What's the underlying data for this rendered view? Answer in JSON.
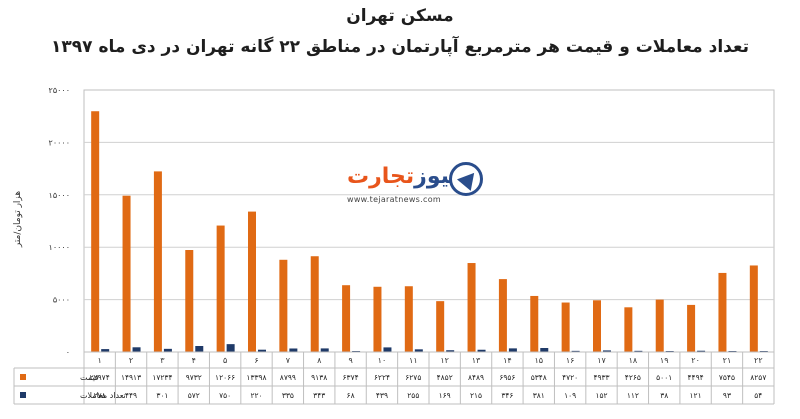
{
  "chart_data": {
    "type": "bar",
    "title": "مسکن تهران",
    "subtitle": "تعداد معاملات و قیمت هر مترمربع آپارتمان در مناطق ۲۲ گانه تهران در دی ماه ۱۳۹۷",
    "ylabel": "هزار تومان/متر",
    "ylim": [
      0,
      25000
    ],
    "yticks": [
      "۲۵۰۰۰",
      "۲۰۰۰۰",
      "۱۵۰۰۰",
      "۱۰۰۰۰",
      "۵۰۰۰",
      "۰"
    ],
    "categories": [
      "۱",
      "۲",
      "۳",
      "۴",
      "۵",
      "۶",
      "۷",
      "۸",
      "۹",
      "۱۰",
      "۱۱",
      "۱۲",
      "۱۳",
      "۱۴",
      "۱۵",
      "۱۶",
      "۱۷",
      "۱۸",
      "۱۹",
      "۲۰",
      "۲۱",
      "۲۲"
    ],
    "series": [
      {
        "name": "قیمت",
        "color": "#e06a14",
        "values": [
          22974,
          14913,
          17234,
          9732,
          12066,
          13398,
          8799,
          9138,
          6374,
          6224,
          6275,
          4852,
          8489,
          6956,
          5348,
          4720,
          4933,
          4265,
          5001,
          4494,
          7545,
          8257
        ],
        "labels": [
          "۲۲۹۷۴",
          "۱۴۹۱۳",
          "۱۷۲۳۴",
          "۹۷۳۲",
          "۱۲۰۶۶",
          "۱۳۳۹۸",
          "۸۷۹۹",
          "۹۱۳۸",
          "۶۳۷۴",
          "۶۲۲۴",
          "۶۲۷۵",
          "۴۸۵۲",
          "۸۴۸۹",
          "۶۹۵۶",
          "۵۳۴۸",
          "۴۷۲۰",
          "۴۹۳۳",
          "۴۲۶۵",
          "۵۰۰۱",
          "۴۴۹۴",
          "۷۵۴۵",
          "۸۲۵۷"
        ]
      },
      {
        "name": "تعداد معاملات",
        "color": "#1f3a68",
        "values": [
          278,
          449,
          301,
          572,
          750,
          220,
          335,
          343,
          68,
          439,
          255,
          169,
          215,
          346,
          381,
          109,
          152,
          112,
          38,
          121,
          93,
          54
        ],
        "labels": [
          "۲۷۸",
          "۴۴۹",
          "۳۰۱",
          "۵۷۲",
          "۷۵۰",
          "۲۲۰",
          "۳۳۵",
          "۳۴۳",
          "۶۸",
          "۴۳۹",
          "۲۵۵",
          "۱۶۹",
          "۲۱۵",
          "۳۴۶",
          "۳۸۱",
          "۱۰۹",
          "۱۵۲",
          "۱۱۲",
          "۳۸",
          "۱۲۱",
          "۹۳",
          "۵۴"
        ]
      }
    ],
    "grid": true,
    "legend": "table-below"
  },
  "logo": {
    "word_a": "تجارت",
    "word_b": "نیوز",
    "url": "www.tejaratnews.com"
  }
}
